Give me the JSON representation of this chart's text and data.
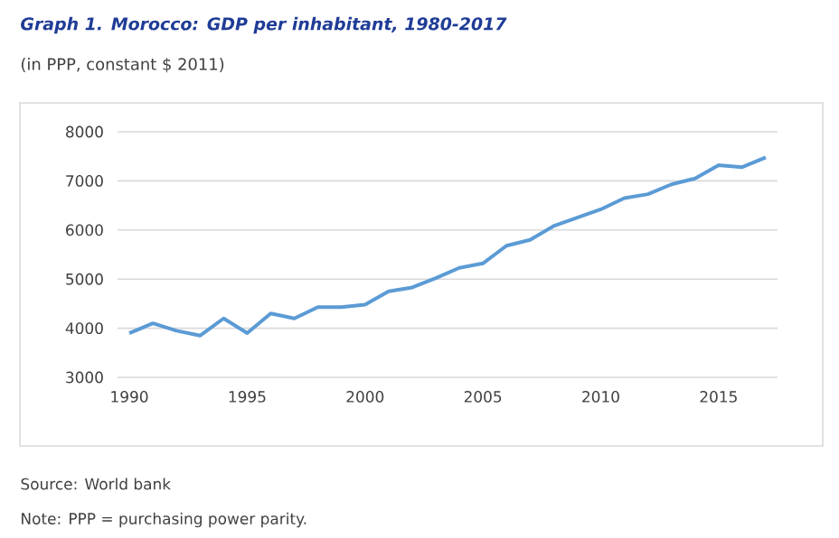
{
  "chart_data": {
    "type": "line",
    "title": "Graph 1. Morocco: GDP per inhabitant, 1980-2017",
    "subtitle": "(in PPP, constant $ 2011)",
    "annotations": [
      "Source: World bank",
      "Note: PPP = purchasing power parity."
    ],
    "x": [
      1990,
      1991,
      1992,
      1993,
      1994,
      1995,
      1996,
      1997,
      1998,
      1999,
      2000,
      2001,
      2002,
      2003,
      2004,
      2005,
      2006,
      2007,
      2008,
      2009,
      2010,
      2011,
      2012,
      2013,
      2014,
      2015,
      2016,
      2017
    ],
    "series": [
      {
        "color": "#5b9bd5",
        "values": [
          3900,
          4100,
          3950,
          3850,
          4200,
          3900,
          4300,
          4200,
          4430,
          4430,
          4480,
          4750,
          4830,
          5020,
          5230,
          5320,
          5680,
          5800,
          6080,
          6250,
          6420,
          6650,
          6730,
          6930,
          7050,
          7320,
          7280,
          7480
        ]
      }
    ],
    "xlim": [
      1989.5,
      2017.5
    ],
    "ylim": [
      3000,
      8000
    ],
    "xticks": [
      1990,
      1995,
      2000,
      2005,
      2010,
      2015
    ],
    "yticks": [
      3000,
      4000,
      5000,
      6000,
      7000,
      8000
    ],
    "grid": "y",
    "marker": "none",
    "line_style": "solid"
  }
}
